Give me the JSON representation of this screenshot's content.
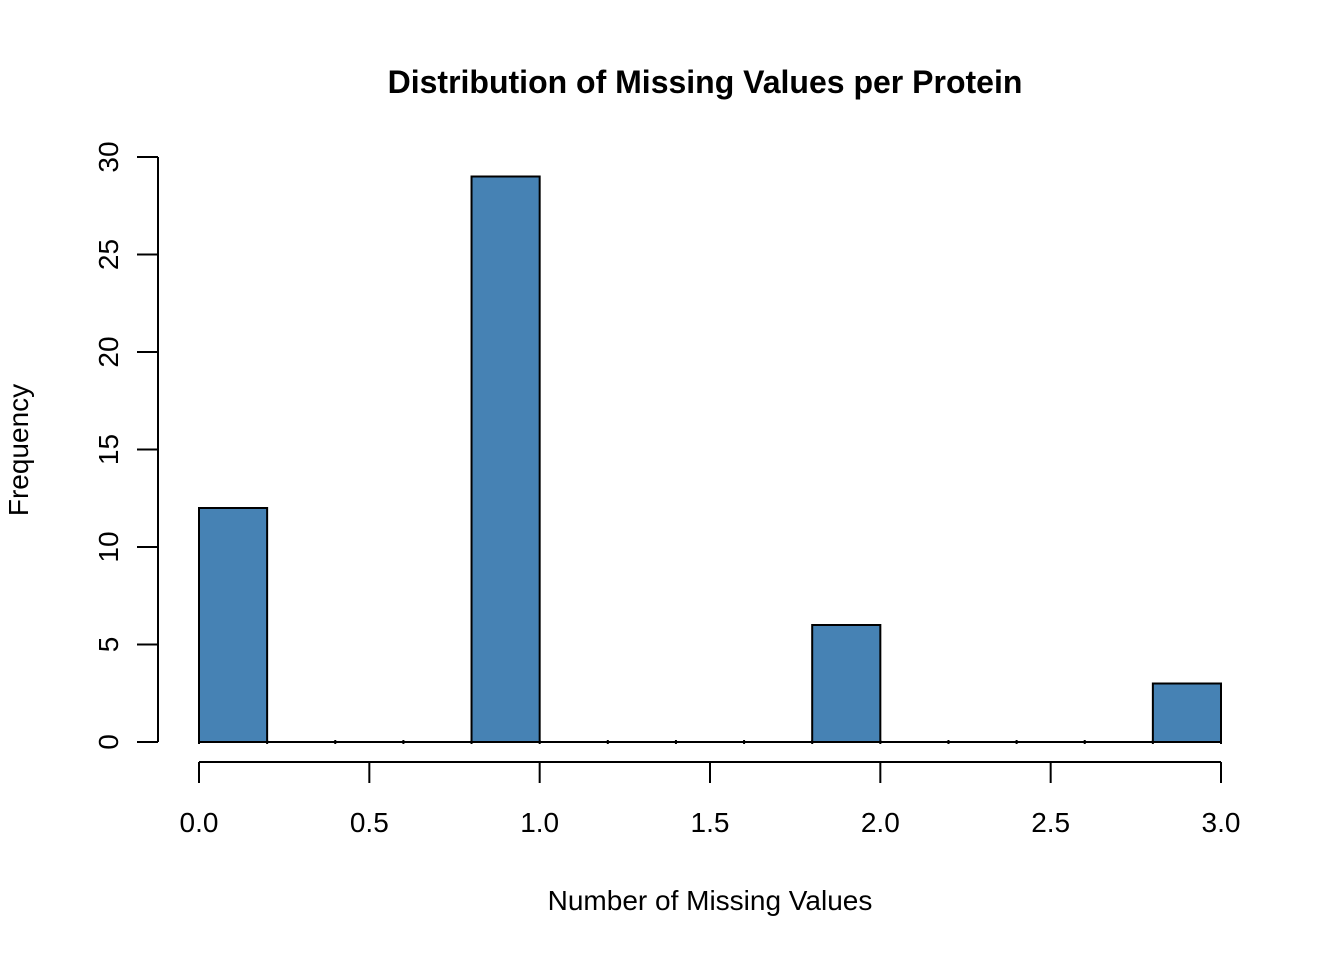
{
  "chart_data": {
    "type": "bar",
    "variant": "histogram",
    "title": "Distribution of Missing Values per Protein",
    "xlabel": "Number of Missing Values",
    "ylabel": "Frequency",
    "xlim": [
      0,
      3
    ],
    "ylim": [
      0,
      30
    ],
    "bin_width": 0.2,
    "bins": [
      {
        "from": 0.0,
        "to": 0.2,
        "count": 12
      },
      {
        "from": 0.8,
        "to": 1.0,
        "count": 29
      },
      {
        "from": 1.8,
        "to": 2.0,
        "count": 6
      },
      {
        "from": 2.8,
        "to": 3.0,
        "count": 3
      }
    ],
    "x_tick_values": [
      0,
      0.5,
      1,
      1.5,
      2,
      2.5,
      3
    ],
    "x_tick_labels": [
      "0.0",
      "0.5",
      "1.0",
      "1.5",
      "2.0",
      "2.5",
      "3.0"
    ],
    "y_tick_values": [
      0,
      5,
      10,
      15,
      20,
      25,
      30
    ],
    "y_tick_labels": [
      "0",
      "5",
      "10",
      "15",
      "20",
      "25",
      "30"
    ],
    "grid": false,
    "legend_position": "none",
    "colors": {
      "bar_fill": "#4682B4",
      "bar_stroke": "#000000",
      "axis": "#000000",
      "text": "#000000",
      "background": "#FFFFFF"
    }
  }
}
